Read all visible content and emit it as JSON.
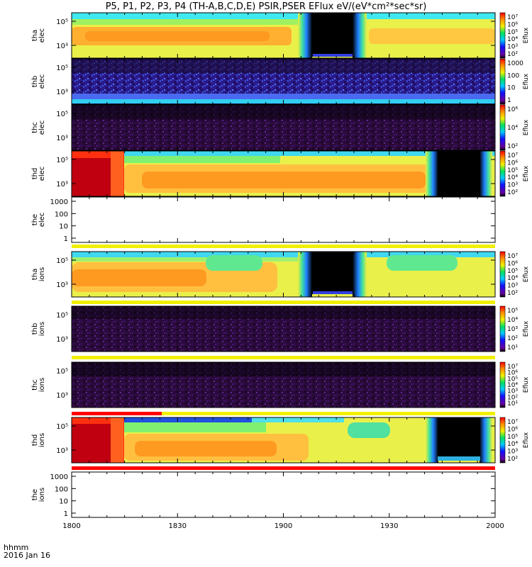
{
  "title": "P5, P1, P2, P3, P4 (TH-A,B,C,D,E) PSIR,PSER EFlux eV/(eV*cm²*sec*sr)",
  "footer": {
    "line1": "hhmm",
    "line2": "2016 Jan 16"
  },
  "x_ticks": [
    "1800",
    "1830",
    "1900",
    "1930",
    "2000"
  ],
  "chart_data": [
    {
      "type": "heatmap",
      "panel": "tha-elec",
      "ylabel": [
        "tha",
        "elec"
      ],
      "yticks": [
        "10⁵",
        "10³"
      ],
      "colorbar": {
        "label": "Eflux",
        "ticks": [
          "10⁷",
          "10⁶",
          "10⁵",
          "10⁴",
          "10³",
          "10²"
        ]
      }
    },
    {
      "type": "heatmap",
      "panel": "thb-elec",
      "ylabel": [
        "thb",
        "elec"
      ],
      "yticks": [
        "10⁵",
        "10³"
      ],
      "colorbar": {
        "label": "Eflux",
        "ticks": [
          "1000",
          "100",
          "10",
          "1"
        ]
      }
    },
    {
      "type": "heatmap",
      "panel": "thc-elec",
      "ylabel": [
        "thc",
        "elec"
      ],
      "yticks": [
        "10⁵",
        "10³"
      ],
      "colorbar": {
        "label": "Eflux",
        "ticks": [
          "10⁶",
          "10⁴",
          "10²"
        ]
      }
    },
    {
      "type": "heatmap",
      "panel": "thd-elec",
      "ylabel": [
        "thd",
        "elec"
      ],
      "yticks": [
        "10⁵",
        "10³"
      ],
      "colorbar": {
        "label": "Eflux",
        "ticks": [
          "10⁷",
          "10⁶",
          "10⁵",
          "10⁴",
          "10³",
          "10²"
        ]
      }
    },
    {
      "type": "empty",
      "panel": "the-elec",
      "ylabel": [
        "the",
        "elec"
      ],
      "yticks": [
        "1000",
        "100",
        "10",
        "1"
      ]
    },
    {
      "type": "heatmap",
      "panel": "tha-ions",
      "ylabel": [
        "tha",
        "ions"
      ],
      "yticks": [
        "10⁵",
        "10³"
      ],
      "colorbar": {
        "label": "Eflux",
        "ticks": [
          "10⁷",
          "10⁶",
          "10⁵",
          "10⁴",
          "10³",
          "10²"
        ]
      }
    },
    {
      "type": "heatmap",
      "panel": "thb-ions",
      "ylabel": [
        "thb",
        "ions"
      ],
      "yticks": [
        "10⁵",
        "10³"
      ],
      "colorbar": {
        "label": "Eflux",
        "ticks": [
          "10⁵",
          "10⁴",
          "10³",
          "10²",
          "10¹"
        ]
      }
    },
    {
      "type": "heatmap",
      "panel": "thc-ions",
      "ylabel": [
        "thc",
        "ions"
      ],
      "yticks": [
        "10⁵",
        "10³"
      ],
      "colorbar": {
        "label": "Eflux",
        "ticks": [
          "10⁷",
          "10⁶",
          "10⁵",
          "10⁴",
          "10³",
          "10²",
          "10¹"
        ]
      }
    },
    {
      "type": "heatmap",
      "panel": "thd-ions",
      "ylabel": [
        "thd",
        "ions"
      ],
      "yticks": [
        "10⁵",
        "10³"
      ],
      "colorbar": {
        "label": "Eflux",
        "ticks": [
          "10⁷",
          "10⁶",
          "10⁵",
          "10⁴",
          "10³",
          "10²"
        ]
      }
    },
    {
      "type": "empty",
      "panel": "the-ions",
      "ylabel": [
        "the",
        "ions"
      ],
      "yticks": [
        "1000",
        "100",
        "10",
        "1"
      ]
    }
  ]
}
